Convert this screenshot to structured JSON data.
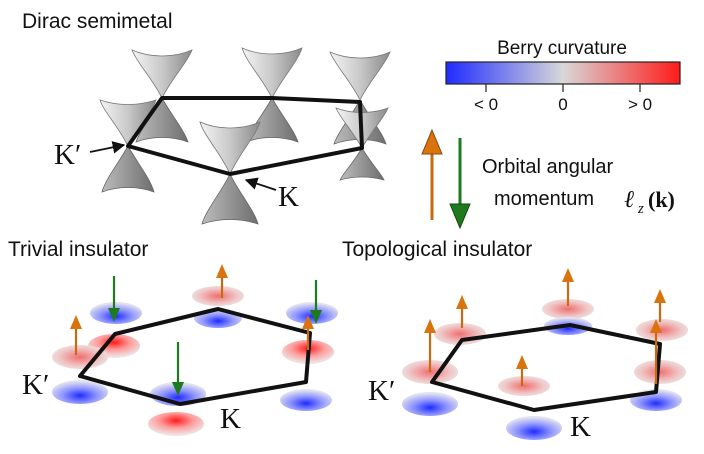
{
  "panels": {
    "dirac": {
      "title": "Dirac semimetal",
      "k_prime": "K′",
      "k": "K"
    },
    "trivial": {
      "title": "Trivial insulator",
      "k_prime": "K′",
      "k": "K"
    },
    "topological": {
      "title": "Topological insulator",
      "k_prime": "K′",
      "k": "K"
    }
  },
  "berry_curvature": {
    "title": "Berry curvature",
    "tick_negative": "< 0",
    "tick_zero": "0",
    "tick_positive": "> 0",
    "colors": {
      "negative": "#1f2bff",
      "zero": "#d8d8d8",
      "positive": "#ff1a1a"
    }
  },
  "orbital_angular_momentum": {
    "line1": "Orbital angular",
    "line2": "momentum",
    "symbol": "ℓ",
    "subscript": "z",
    "argument": "(k)",
    "up_color": "#d9730d",
    "down_color": "#1e7a1e"
  }
}
